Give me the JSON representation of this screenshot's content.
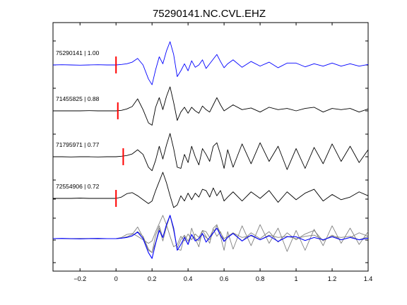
{
  "chart_data": {
    "type": "line",
    "title": "75290141.NC.CVL.EHZ",
    "xlabel": "",
    "ylabel": "",
    "xlim": [
      -0.35,
      1.4
    ],
    "x_ticks": [
      -0.2,
      0,
      0.2,
      0.4,
      0.6,
      0.8,
      1,
      1.2,
      1.4
    ],
    "x_tick_labels": [
      "−0.2",
      "0",
      "0.2",
      "0.4",
      "0.6",
      "0.8",
      "1",
      "1.2",
      "1.4"
    ],
    "y_visible": false,
    "grid": false,
    "colors": {
      "primary": "#0000ff",
      "secondary": "#000000",
      "stack_other": "#808080",
      "pick": "#ff0000"
    },
    "traces": [
      {
        "label": "75290141 | 1.00",
        "color": "#0000ff",
        "pick_time": 0.0,
        "x": [
          -0.35,
          -0.3,
          -0.25,
          -0.2,
          -0.15,
          -0.1,
          -0.05,
          0.0,
          0.03,
          0.06,
          0.09,
          0.12,
          0.15,
          0.18,
          0.2,
          0.22,
          0.24,
          0.26,
          0.28,
          0.3,
          0.32,
          0.34,
          0.36,
          0.38,
          0.4,
          0.42,
          0.44,
          0.46,
          0.48,
          0.5,
          0.52,
          0.54,
          0.56,
          0.58,
          0.6,
          0.62,
          0.65,
          0.7,
          0.75,
          0.8,
          0.85,
          0.9,
          0.95,
          1.0,
          1.05,
          1.1,
          1.15,
          1.2,
          1.25,
          1.3,
          1.35,
          1.4
        ],
        "y": [
          0.0,
          0.01,
          0.0,
          -0.01,
          0.0,
          0.01,
          0.0,
          0.0,
          0.02,
          0.05,
          0.12,
          0.28,
          0.0,
          -0.6,
          -0.85,
          -0.2,
          0.35,
          0.05,
          0.6,
          1.0,
          0.45,
          -0.5,
          -0.25,
          0.05,
          -0.25,
          0.18,
          -0.1,
          0.0,
          0.22,
          -0.15,
          0.05,
          0.25,
          0.45,
          0.15,
          -0.12,
          0.05,
          0.22,
          -0.1,
          0.15,
          -0.05,
          0.12,
          -0.12,
          0.08,
          0.08,
          -0.08,
          0.05,
          -0.05,
          0.08,
          -0.05,
          0.05,
          -0.05,
          0.02
        ]
      },
      {
        "label": "71455825 | 0.88",
        "color": "#000000",
        "pick_time": 0.01,
        "x": [
          -0.35,
          -0.3,
          -0.25,
          -0.2,
          -0.15,
          -0.1,
          -0.05,
          0.0,
          0.03,
          0.06,
          0.09,
          0.12,
          0.15,
          0.18,
          0.2,
          0.22,
          0.24,
          0.26,
          0.28,
          0.3,
          0.32,
          0.34,
          0.36,
          0.38,
          0.4,
          0.42,
          0.44,
          0.46,
          0.48,
          0.5,
          0.52,
          0.54,
          0.56,
          0.58,
          0.6,
          0.62,
          0.65,
          0.7,
          0.75,
          0.8,
          0.85,
          0.9,
          0.95,
          1.0,
          1.05,
          1.1,
          1.15,
          1.2,
          1.25,
          1.3,
          1.35,
          1.4
        ],
        "y": [
          0.0,
          0.0,
          0.0,
          0.0,
          0.01,
          0.0,
          0.0,
          0.0,
          0.02,
          0.08,
          0.18,
          0.5,
          0.05,
          -0.5,
          -0.6,
          0.15,
          0.55,
          0.05,
          0.6,
          1.0,
          0.35,
          -0.4,
          -0.05,
          0.15,
          -0.1,
          0.15,
          0.0,
          -0.1,
          0.2,
          0.05,
          -0.05,
          0.25,
          0.55,
          0.25,
          0.0,
          0.1,
          0.25,
          0.05,
          0.12,
          -0.05,
          0.15,
          0.05,
          0.1,
          0.0,
          0.1,
          0.15,
          -0.05,
          0.1,
          0.05,
          0.1,
          -0.05,
          0.08
        ]
      },
      {
        "label": "71795971 | 0.77",
        "color": "#000000",
        "pick_time": 0.04,
        "x": [
          -0.35,
          -0.3,
          -0.25,
          -0.2,
          -0.15,
          -0.1,
          -0.05,
          0.0,
          0.03,
          0.06,
          0.09,
          0.12,
          0.15,
          0.18,
          0.2,
          0.22,
          0.24,
          0.26,
          0.28,
          0.3,
          0.32,
          0.34,
          0.36,
          0.38,
          0.4,
          0.42,
          0.44,
          0.46,
          0.48,
          0.5,
          0.52,
          0.54,
          0.56,
          0.58,
          0.6,
          0.62,
          0.65,
          0.7,
          0.75,
          0.8,
          0.85,
          0.9,
          0.95,
          1.0,
          1.05,
          1.1,
          1.15,
          1.2,
          1.25,
          1.3,
          1.35,
          1.4
        ],
        "y": [
          0.0,
          0.0,
          -0.01,
          0.0,
          0.0,
          -0.01,
          0.0,
          0.0,
          0.02,
          0.05,
          0.12,
          0.3,
          0.1,
          -0.45,
          -0.6,
          -0.15,
          0.45,
          -0.1,
          0.5,
          1.0,
          0.35,
          -0.45,
          -0.5,
          0.1,
          -0.25,
          0.45,
          0.0,
          -0.35,
          0.35,
          0.1,
          -0.2,
          0.45,
          0.6,
          0.1,
          -0.5,
          0.3,
          -0.45,
          0.55,
          -0.3,
          0.6,
          -0.2,
          0.45,
          -0.55,
          0.35,
          -0.5,
          0.4,
          -0.3,
          0.55,
          -0.2,
          0.45,
          -0.25,
          0.3
        ]
      },
      {
        "label": "72554906 | 0.72",
        "color": "#000000",
        "pick_time": 0.0,
        "x": [
          -0.35,
          -0.3,
          -0.25,
          -0.2,
          -0.15,
          -0.1,
          -0.05,
          0.0,
          0.03,
          0.06,
          0.09,
          0.12,
          0.15,
          0.18,
          0.2,
          0.22,
          0.24,
          0.26,
          0.28,
          0.3,
          0.32,
          0.34,
          0.36,
          0.38,
          0.4,
          0.42,
          0.44,
          0.46,
          0.48,
          0.5,
          0.52,
          0.54,
          0.56,
          0.58,
          0.6,
          0.62,
          0.65,
          0.7,
          0.75,
          0.8,
          0.85,
          0.9,
          0.95,
          1.0,
          1.05,
          1.1,
          1.15,
          1.2,
          1.25,
          1.3,
          1.35,
          1.4
        ],
        "y": [
          0.0,
          0.0,
          0.0,
          0.01,
          0.0,
          0.0,
          0.0,
          0.0,
          0.05,
          0.18,
          0.22,
          0.1,
          -0.05,
          -0.2,
          -0.1,
          0.3,
          0.65,
          1.0,
          0.6,
          0.1,
          -0.35,
          -0.25,
          0.1,
          -0.1,
          0.2,
          -0.05,
          0.2,
          0.05,
          0.35,
          0.3,
          0.05,
          0.4,
          0.1,
          0.3,
          -0.1,
          0.05,
          0.25,
          -0.1,
          0.25,
          0.0,
          0.3,
          -0.15,
          0.25,
          -0.05,
          0.2,
          0.35,
          -0.1,
          0.15,
          -0.05,
          0.05,
          0.25,
          0.1
        ]
      }
    ]
  }
}
